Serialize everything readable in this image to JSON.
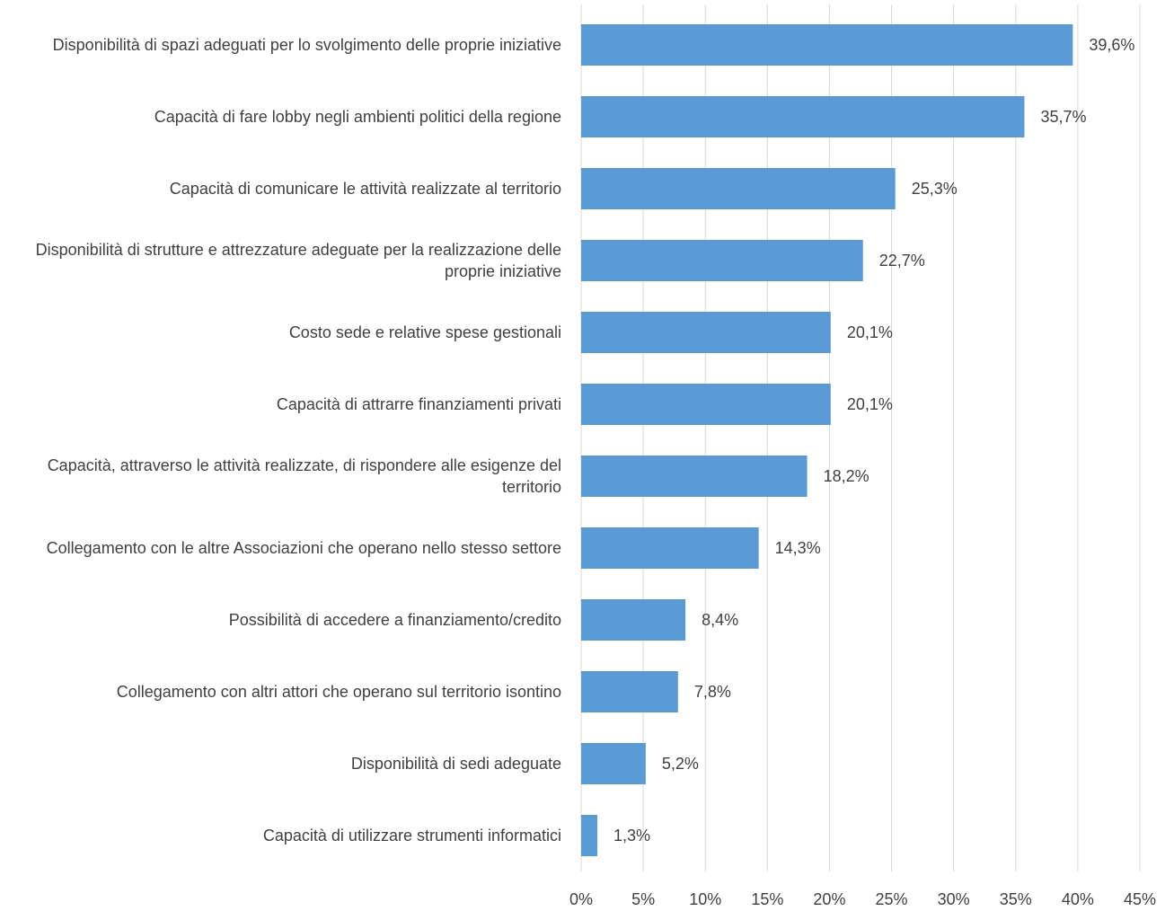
{
  "chart_data": {
    "type": "bar",
    "orientation": "horizontal",
    "categories": [
      "Disponibilità di spazi adeguati per lo svolgimento delle proprie iniziative",
      "Capacità di fare lobby negli ambienti politici della regione",
      "Capacità di comunicare le attività realizzate al territorio",
      "Disponibilità di strutture e attrezzature adeguate per la realizzazione delle proprie iniziative",
      "Costo sede e relative spese gestionali",
      "Capacità di attrarre finanziamenti privati",
      "Capacità, attraverso le attività realizzate, di rispondere alle esigenze del territorio",
      "Collegamento con le altre Associazioni che operano nello stesso settore",
      "Possibilità di accedere a finanziamento/credito",
      "Collegamento con altri attori che operano sul territorio isontino",
      "Disponibilità di sedi adeguate",
      "Capacità di utilizzare strumenti informatici"
    ],
    "values": [
      39.6,
      35.7,
      25.3,
      22.7,
      20.1,
      20.1,
      18.2,
      14.3,
      8.4,
      7.8,
      5.2,
      1.3
    ],
    "value_labels": [
      "39,6%",
      "35,7%",
      "25,3%",
      "22,7%",
      "20,1%",
      "20,1%",
      "18,2%",
      "14,3%",
      "8,4%",
      "7,8%",
      "5,2%",
      "1,3%"
    ],
    "color": "#5b9bd5",
    "xlim": [
      0,
      45
    ],
    "xticks": [
      {
        "value": 0,
        "label": "0%"
      },
      {
        "value": 5,
        "label": "5%"
      },
      {
        "value": 10,
        "label": "10%"
      },
      {
        "value": 15,
        "label": "15%"
      },
      {
        "value": 20,
        "label": "20%"
      },
      {
        "value": 25,
        "label": "25%"
      },
      {
        "value": 30,
        "label": "30%"
      },
      {
        "value": 35,
        "label": "35%"
      },
      {
        "value": 40,
        "label": "40%"
      },
      {
        "value": 45,
        "label": "45%"
      }
    ],
    "grid": true
  }
}
